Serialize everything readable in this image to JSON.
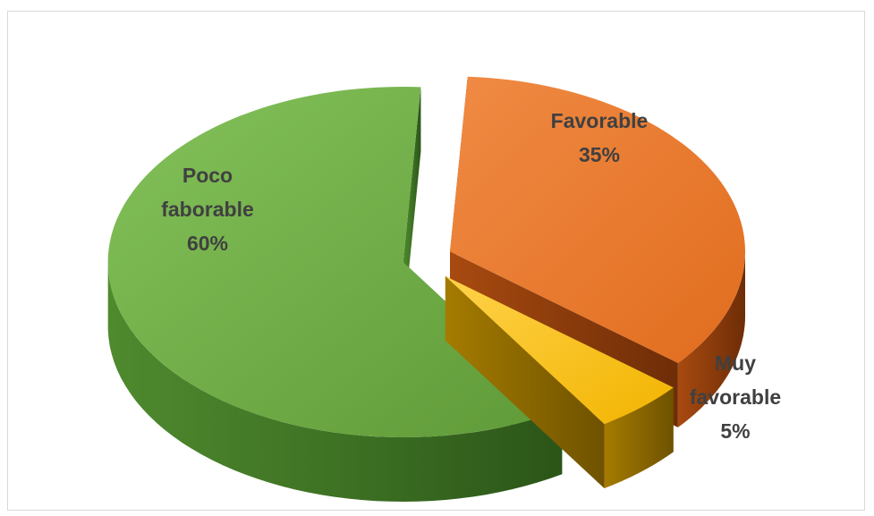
{
  "chart_data": {
    "type": "pie",
    "title": "",
    "three_d": true,
    "exploded": true,
    "slices": [
      {
        "name": "Favorable",
        "value": 35,
        "label_lines": [
          "Favorable",
          "35%"
        ],
        "color": "#ed7d31"
      },
      {
        "name": "Muy favorable",
        "value": 5,
        "label_lines": [
          "Muy",
          "favorable",
          "5%"
        ],
        "color": "#ffc000"
      },
      {
        "name": "Poco faborable",
        "value": 60,
        "label_lines": [
          "Poco",
          "faborable",
          "60%"
        ],
        "color": "#70ad47"
      }
    ]
  }
}
